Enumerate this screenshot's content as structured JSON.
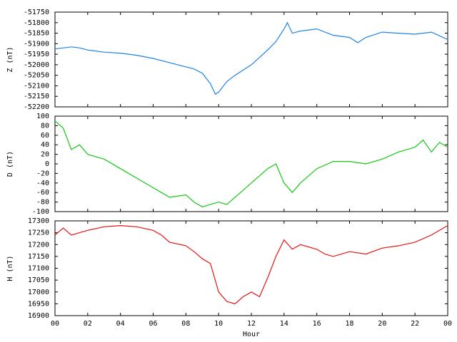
{
  "chart_data": [
    {
      "type": "line",
      "ylabel": "Z (nT)",
      "color": "#1e82e6",
      "x": [
        0,
        1,
        1.5,
        2,
        3,
        4,
        5,
        6,
        7,
        7.5,
        8,
        8.5,
        9,
        9.5,
        9.8,
        10,
        10.5,
        11,
        12,
        13,
        13.5,
        14,
        14.2,
        14.5,
        15,
        16,
        17,
        18,
        18.5,
        19,
        20,
        21,
        22,
        23,
        24
      ],
      "values": [
        -51925,
        -51915,
        -51920,
        -51930,
        -51940,
        -51945,
        -51955,
        -51970,
        -51990,
        -52000,
        -52010,
        -52020,
        -52040,
        -52090,
        -52140,
        -52130,
        -52080,
        -52050,
        -52000,
        -51930,
        -51890,
        -51830,
        -51800,
        -51850,
        -51840,
        -51830,
        -51860,
        -51870,
        -51895,
        -51870,
        -51845,
        -51850,
        -51855,
        -51845,
        -51880
      ],
      "xlim": [
        0,
        24
      ],
      "xticks": [
        0,
        2,
        4,
        6,
        8,
        10,
        12,
        14,
        16,
        18,
        20,
        22,
        24
      ],
      "ylim": [
        -52200,
        -51750
      ],
      "yticks": [
        -52200,
        -52150,
        -52100,
        -52050,
        -52000,
        -51950,
        -51900,
        -51850,
        -51800,
        -51750
      ]
    },
    {
      "type": "line",
      "ylabel": "D (nT)",
      "color": "#14c814",
      "x": [
        0,
        0.5,
        1,
        1.5,
        2,
        3,
        4,
        5,
        6,
        6.5,
        7,
        8,
        8.5,
        9,
        9.5,
        10,
        10.5,
        11,
        12,
        13,
        13.5,
        14,
        14.5,
        15,
        16,
        17,
        18,
        19,
        20,
        21,
        22,
        22.5,
        23,
        23.5,
        24
      ],
      "values": [
        90,
        75,
        30,
        40,
        20,
        10,
        -10,
        -30,
        -50,
        -60,
        -70,
        -65,
        -80,
        -90,
        -85,
        -80,
        -85,
        -70,
        -40,
        -10,
        0,
        -40,
        -60,
        -40,
        -10,
        5,
        5,
        0,
        10,
        25,
        35,
        50,
        25,
        45,
        35
      ],
      "xlim": [
        0,
        24
      ],
      "xticks": [
        0,
        2,
        4,
        6,
        8,
        10,
        12,
        14,
        16,
        18,
        20,
        22,
        24
      ],
      "ylim": [
        -100,
        100
      ],
      "yticks": [
        -100,
        -80,
        -60,
        -40,
        -20,
        0,
        20,
        40,
        60,
        80,
        100
      ]
    },
    {
      "type": "line",
      "ylabel": "H (nT)",
      "xlabel": "Hour",
      "color": "#e61414",
      "x": [
        0,
        0.5,
        1,
        2,
        3,
        4,
        5,
        6,
        6.5,
        7,
        8,
        8.5,
        9,
        9.5,
        10,
        10.5,
        11,
        11.5,
        12,
        12.5,
        13,
        13.5,
        14,
        14.5,
        15,
        16,
        16.5,
        17,
        18,
        19,
        20,
        21,
        22,
        23,
        24
      ],
      "values": [
        17240,
        17270,
        17240,
        17260,
        17275,
        17280,
        17275,
        17260,
        17240,
        17210,
        17195,
        17170,
        17140,
        17120,
        17000,
        16960,
        16950,
        16980,
        17000,
        16980,
        17060,
        17150,
        17220,
        17180,
        17200,
        17180,
        17160,
        17150,
        17170,
        17160,
        17185,
        17195,
        17210,
        17240,
        17280
      ],
      "xlim": [
        0,
        24
      ],
      "xticks": [
        {
          "value": 0,
          "label": "00"
        },
        {
          "value": 2,
          "label": "02"
        },
        {
          "value": 4,
          "label": "04"
        },
        {
          "value": 6,
          "label": "06"
        },
        {
          "value": 8,
          "label": "08"
        },
        10,
        12,
        14,
        16,
        18,
        20,
        22,
        {
          "value": 24,
          "label": "00"
        }
      ],
      "ylim": [
        16900,
        17300
      ],
      "yticks": [
        16900,
        16950,
        17000,
        17050,
        17100,
        17150,
        17200,
        17250,
        17300
      ]
    }
  ]
}
